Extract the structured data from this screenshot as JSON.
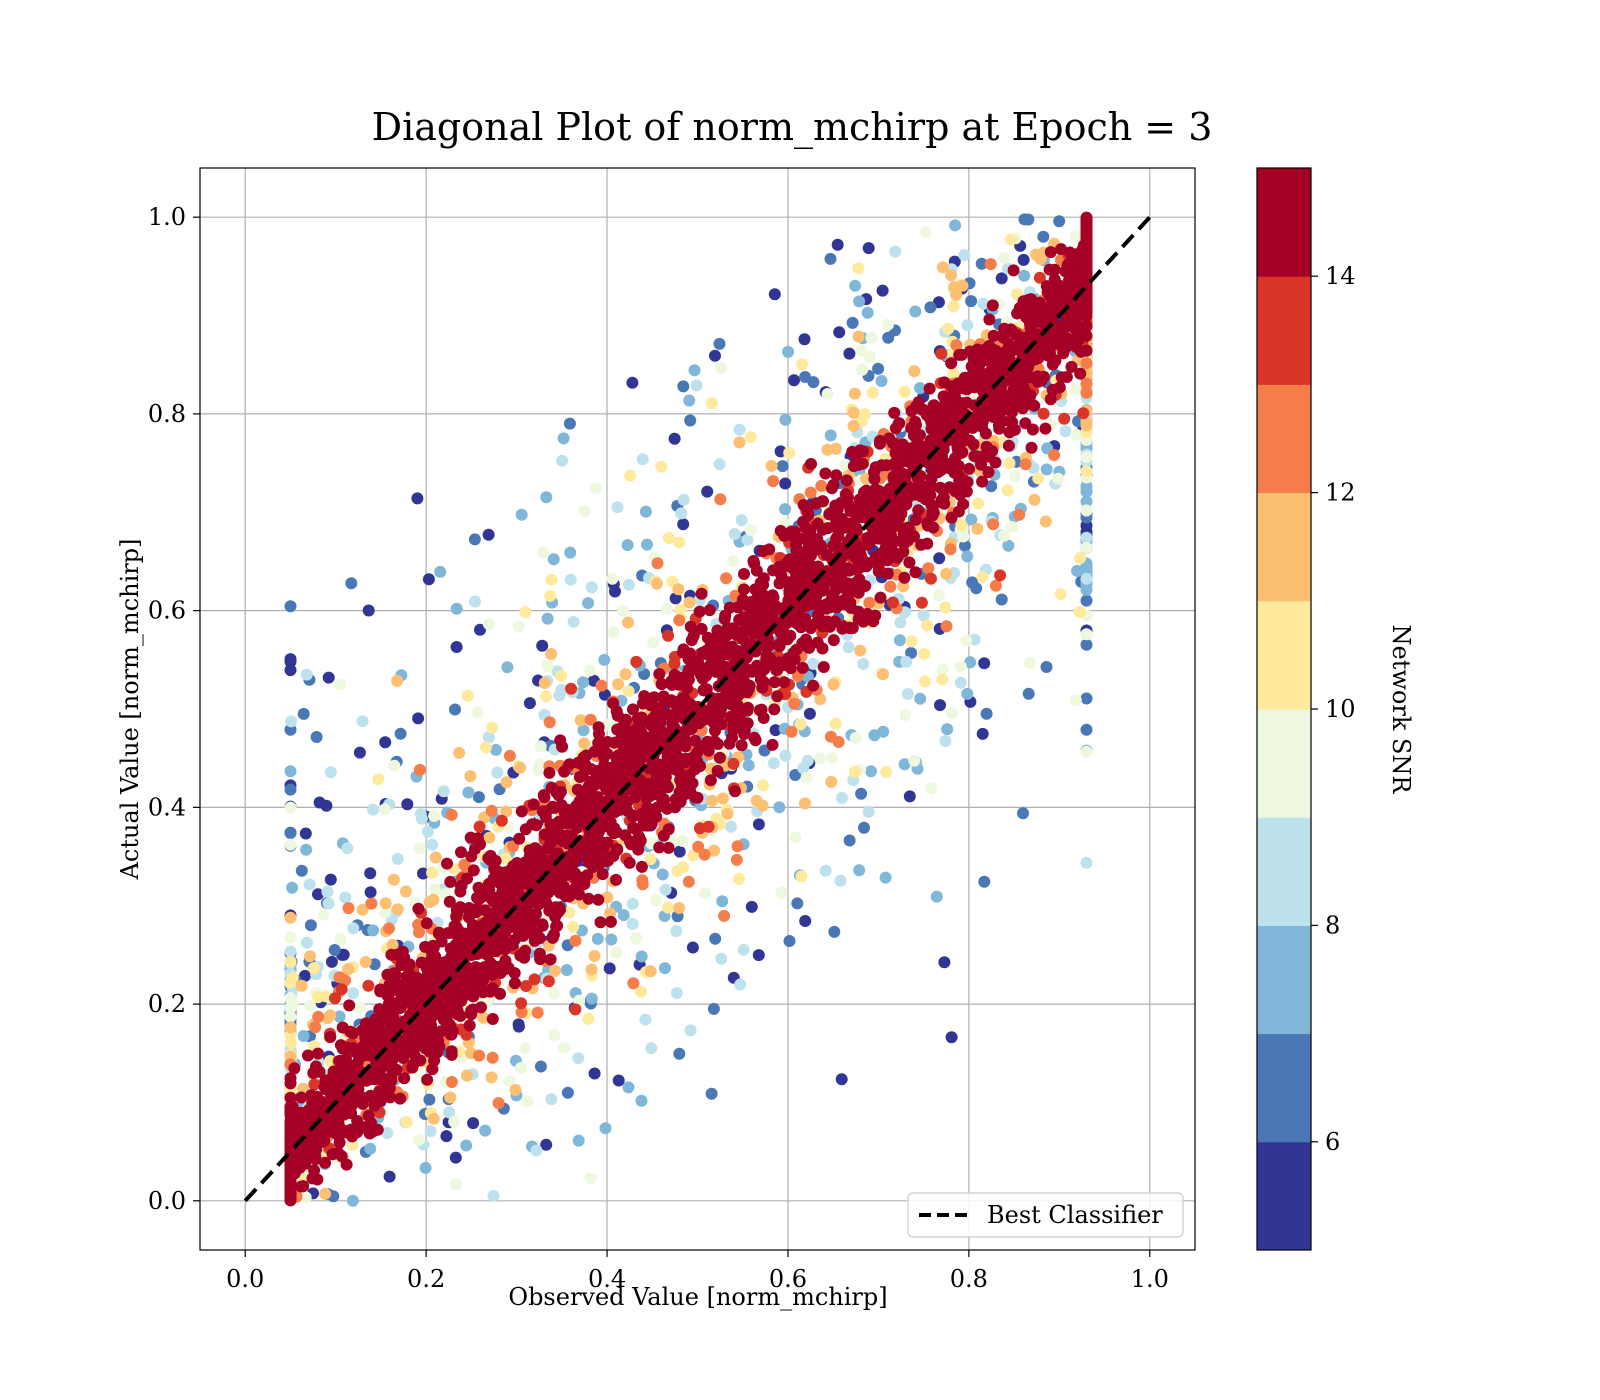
{
  "chart_data": {
    "type": "scatter",
    "title": "Diagonal Plot of norm_mchirp at Epoch = 3",
    "xlabel": "Observed Value [norm_mchirp]",
    "ylabel": "Actual Value [norm_mchirp]",
    "xlim": [
      -0.05,
      1.05
    ],
    "ylim": [
      -0.05,
      1.05
    ],
    "xticks": [
      "0.0",
      "0.2",
      "0.4",
      "0.6",
      "0.8",
      "1.0"
    ],
    "yticks": [
      "0.0",
      "0.2",
      "0.4",
      "0.6",
      "0.8",
      "1.0"
    ],
    "grid": true,
    "reference_line": {
      "name": "Best Classifier",
      "x": [
        0,
        1
      ],
      "y": [
        0,
        1
      ],
      "style": "dashed",
      "color": "#000000"
    },
    "legend": {
      "placement": "lower-right",
      "entries": [
        "Best Classifier"
      ]
    },
    "colorbar": {
      "label": "Network SNR",
      "range": [
        5,
        15
      ],
      "ticks": [
        "6",
        "8",
        "10",
        "12",
        "14"
      ],
      "bins": [
        {
          "from": 5,
          "to": 6,
          "color": "#313695"
        },
        {
          "from": 6,
          "to": 7,
          "color": "#4a78b7"
        },
        {
          "from": 7,
          "to": 8,
          "color": "#80b7d8"
        },
        {
          "from": 8,
          "to": 9,
          "color": "#bde2ee"
        },
        {
          "from": 9,
          "to": 10,
          "color": "#eef8df"
        },
        {
          "from": 10,
          "to": 11,
          "color": "#fee99d"
        },
        {
          "from": 11,
          "to": 12,
          "color": "#fdbf71"
        },
        {
          "from": 12,
          "to": 13,
          "color": "#f57d4a"
        },
        {
          "from": 13,
          "to": 14,
          "color": "#d93629"
        },
        {
          "from": 14,
          "to": 15,
          "color": "#a50026"
        }
      ]
    },
    "distribution": {
      "description_values": "Dense band of points around y = x; high SNR (>=14) points tightly along the diagonal, lower SNR points spread further away, with observed values ranging from about 0.05 to 0.93 and actual values from 0.0 to 1.0.",
      "observed_range": [
        0.05,
        0.93
      ],
      "actual_range": [
        0.0,
        1.0
      ]
    }
  }
}
